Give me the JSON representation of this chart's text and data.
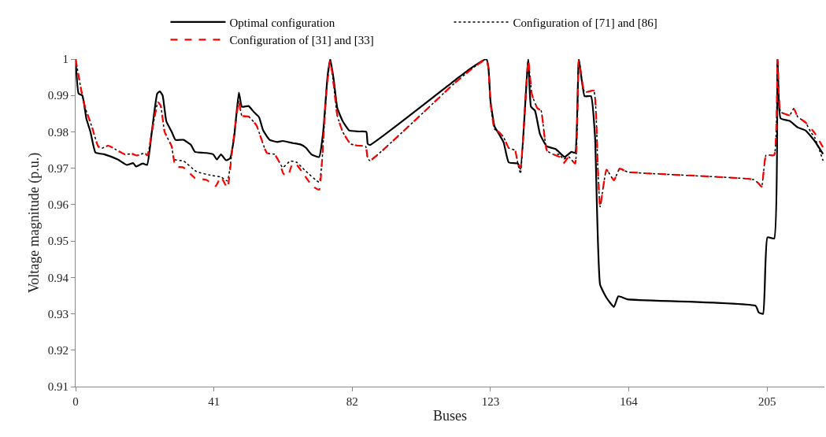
{
  "chart_data": {
    "type": "line",
    "xlabel": "Buses",
    "ylabel": "Voltage magnitude (p.u.)",
    "xlim": [
      0,
      222
    ],
    "xticks": [
      0,
      41,
      82,
      123,
      164,
      205
    ],
    "ylim": [
      0.91,
      1.0
    ],
    "yticks": [
      0.91,
      0.92,
      0.93,
      0.94,
      0.95,
      0.96,
      0.97,
      0.98,
      0.99,
      {
        "value": 1.0,
        "label": "1"
      }
    ],
    "legend": "top",
    "marker": "none",
    "series": [
      {
        "name": "Optimal configuration",
        "color": "#000000",
        "line_style": "solid",
        "x": [
          0,
          0.9,
          2.0,
          3.2,
          4.4,
          5.9,
          8.6,
          12.5,
          15.2,
          17.1,
          17.9,
          19.9,
          21.2,
          22.6,
          24.2,
          25,
          25.8,
          26.9,
          28.5,
          29.6,
          32,
          34.2,
          35.4,
          38.8,
          40.8,
          41.9,
          43.1,
          44.6,
          45.8,
          47,
          48.4,
          49.3,
          51.3,
          52.8,
          54.4,
          55.6,
          57.5,
          59.8,
          61.4,
          64.5,
          66.8,
          68.3,
          69.9,
          72.2,
          73.4,
          74.7,
          75.5,
          76.5,
          77.6,
          79.2,
          81.1,
          83.8,
          86.2,
          86.6,
          87.3,
          112.5,
          117.2,
          121.8,
          122.4,
          123,
          124.2,
          125.4,
          126.9,
          128.4,
          131.1,
          131.9,
          134.2,
          135,
          136.2,
          137.7,
          139.7,
          142.3,
          145,
          147,
          148.1,
          149.2,
          150.9,
          152.8,
          154,
          155.5,
          157.4,
          159.6,
          160.9,
          163.6,
          201.6,
          202.5,
          203.8,
          205.1,
          207.1,
          208.1,
          209,
          211.7,
          214.1,
          216.4,
          219.1,
          221.6
        ],
        "values": [
          1.0,
          0.9905,
          0.99,
          0.9836,
          0.98,
          0.9743,
          0.9738,
          0.9724,
          0.9709,
          0.9714,
          0.9705,
          0.9713,
          0.9709,
          0.98,
          0.9905,
          0.9911,
          0.99,
          0.9829,
          0.98,
          0.9778,
          0.9778,
          0.9764,
          0.9745,
          0.9742,
          0.9738,
          0.9724,
          0.9738,
          0.9722,
          0.9727,
          0.9785,
          0.9908,
          0.9869,
          0.9871,
          0.9855,
          0.984,
          0.9804,
          0.9778,
          0.9772,
          0.9775,
          0.9769,
          0.9765,
          0.9756,
          0.9738,
          0.9731,
          0.98,
          0.9953,
          1.0,
          0.9945,
          0.9865,
          0.9829,
          0.9804,
          0.9801,
          0.98,
          0.9767,
          0.9764,
          0.9942,
          0.9975,
          1.0,
          0.9975,
          0.9884,
          0.9815,
          0.9796,
          0.9771,
          0.9716,
          0.9713,
          0.9698,
          1.0,
          0.9869,
          0.9858,
          0.9793,
          0.976,
          0.9753,
          0.9731,
          0.9745,
          0.9742,
          1.0,
          0.9898,
          0.9898,
          0.9785,
          0.938,
          0.9344,
          0.9319,
          0.9348,
          0.934,
          0.9322,
          0.9304,
          0.93,
          0.951,
          0.9507,
          1.0,
          0.9837,
          0.983,
          0.9812,
          0.9804,
          0.9775,
          0.9739
        ]
      },
      {
        "name": "Configuration of [71] and [86]",
        "color": "#000000",
        "line_style": "dotted",
        "x": [
          0,
          1.7,
          2.9,
          4.8,
          6.7,
          7.8,
          9.7,
          12,
          14.7,
          16.6,
          18.2,
          20.5,
          21.3,
          22.9,
          24.4,
          25.2,
          26.4,
          28.5,
          29.2,
          32,
          35.8,
          40.4,
          43.1,
          45,
          46.5,
          48.4,
          49.3,
          51.3,
          53.6,
          56.7,
          59,
          60.2,
          61.4,
          63.7,
          65.6,
          67.9,
          72.2,
          73,
          74.4,
          75.5,
          76.5,
          77.6,
          79.2,
          81.5,
          83.8,
          86,
          86.6,
          87.3,
          112.5,
          117.2,
          121.8,
          122.4,
          123,
          124.2,
          125.4,
          126.9,
          128.4,
          130.3,
          131.1,
          131.9,
          134.2,
          135.3,
          136.9,
          138,
          139.7,
          141.6,
          143.5,
          144.6,
          146.2,
          148.1,
          149.2,
          150.9,
          153.6,
          154.8,
          155.5,
          157.4,
          159.6,
          161.3,
          163.6,
          200.9,
          202.4,
          203.4,
          204.7,
          207.1,
          208.1,
          209,
          211.7,
          212.9,
          214.1,
          216.4,
          217.9,
          219.1,
          221.6
        ],
        "values": [
          1.0,
          0.9913,
          0.9865,
          0.9815,
          0.976,
          0.9755,
          0.9762,
          0.9751,
          0.9738,
          0.974,
          0.9735,
          0.9742,
          0.9735,
          0.9815,
          0.9881,
          0.9873,
          0.98,
          0.976,
          0.9724,
          0.972,
          0.9691,
          0.968,
          0.9676,
          0.9665,
          0.9756,
          0.9884,
          0.9844,
          0.9842,
          0.9818,
          0.9742,
          0.9738,
          0.972,
          0.9702,
          0.972,
          0.9716,
          0.9695,
          0.9662,
          0.9713,
          0.9916,
          0.9996,
          0.993,
          0.9844,
          0.98,
          0.9767,
          0.9762,
          0.976,
          0.9727,
          0.9721,
          0.9935,
          0.9971,
          1.0,
          0.9975,
          0.988,
          0.9807,
          0.98,
          0.9785,
          0.9756,
          0.9749,
          0.9713,
          0.9685,
          0.9996,
          0.9902,
          0.9865,
          0.9858,
          0.9749,
          0.9738,
          0.9738,
          0.9725,
          0.9731,
          0.9713,
          0.9996,
          0.9909,
          0.9913,
          0.9705,
          0.9594,
          0.9696,
          0.9667,
          0.9699,
          0.969,
          0.9669,
          0.9659,
          0.9649,
          0.9736,
          0.9736,
          1.0,
          0.9855,
          0.9846,
          0.9864,
          0.9841,
          0.9826,
          0.98,
          0.9785,
          0.9721
        ]
      },
      {
        "name": "Configuration of [31] and [33]",
        "color": "#ff0000",
        "line_style": "dashed",
        "x": [
          0,
          1.7,
          2.9,
          4.8,
          6.7,
          7.8,
          9.7,
          12,
          14.7,
          16.6,
          18.2,
          20.5,
          21.3,
          22.9,
          24.4,
          25.2,
          26.4,
          28.5,
          29.6,
          32,
          35.4,
          38.8,
          41.5,
          43.1,
          45,
          46.5,
          48.4,
          49.3,
          51.3,
          53.6,
          56.7,
          59,
          60.2,
          61.7,
          63,
          64.3,
          65.6,
          67.9,
          70.2,
          72.2,
          73,
          74.4,
          75.5,
          76.5,
          77.6,
          79.2,
          81.5,
          83.8,
          86,
          86.6,
          87.3,
          112.5,
          117.2,
          121.8,
          122.4,
          123,
          124.2,
          125.4,
          126.9,
          128.4,
          130.3,
          131.1,
          131.9,
          134.2,
          135.3,
          136.9,
          138,
          139.7,
          141.6,
          143.5,
          144.6,
          146.2,
          148.1,
          149.2,
          150.9,
          153.6,
          154.8,
          155.5,
          157.4,
          159.6,
          161.3,
          163.6,
          200.9,
          202.4,
          203.4,
          204.7,
          207.1,
          208.1,
          209,
          211.7,
          212.9,
          214.1,
          216.4,
          219.1,
          221.6
        ],
        "values": [
          1.0,
          0.9913,
          0.9865,
          0.9815,
          0.976,
          0.9755,
          0.9762,
          0.9751,
          0.9738,
          0.974,
          0.9735,
          0.9742,
          0.9735,
          0.9815,
          0.9881,
          0.9873,
          0.98,
          0.976,
          0.9705,
          0.9702,
          0.9673,
          0.9668,
          0.9651,
          0.9676,
          0.9646,
          0.9756,
          0.9884,
          0.9844,
          0.9842,
          0.9818,
          0.9742,
          0.9738,
          0.972,
          0.9684,
          0.968,
          0.9713,
          0.9709,
          0.968,
          0.9651,
          0.9641,
          0.9713,
          0.9916,
          0.9996,
          0.993,
          0.9844,
          0.98,
          0.9767,
          0.9762,
          0.976,
          0.9727,
          0.9721,
          0.9935,
          0.9971,
          1.0,
          0.9975,
          0.988,
          0.9807,
          0.98,
          0.9785,
          0.9756,
          0.9749,
          0.9713,
          0.9702,
          0.9996,
          0.9902,
          0.9865,
          0.9858,
          0.9749,
          0.9738,
          0.9731,
          0.9713,
          0.9731,
          0.9713,
          0.9996,
          0.9909,
          0.9913,
          0.9705,
          0.9594,
          0.9696,
          0.9667,
          0.9699,
          0.969,
          0.9669,
          0.9659,
          0.9649,
          0.9736,
          0.9736,
          1.0,
          0.9855,
          0.9846,
          0.9864,
          0.9841,
          0.9826,
          0.9797,
          0.9757
        ]
      }
    ]
  }
}
